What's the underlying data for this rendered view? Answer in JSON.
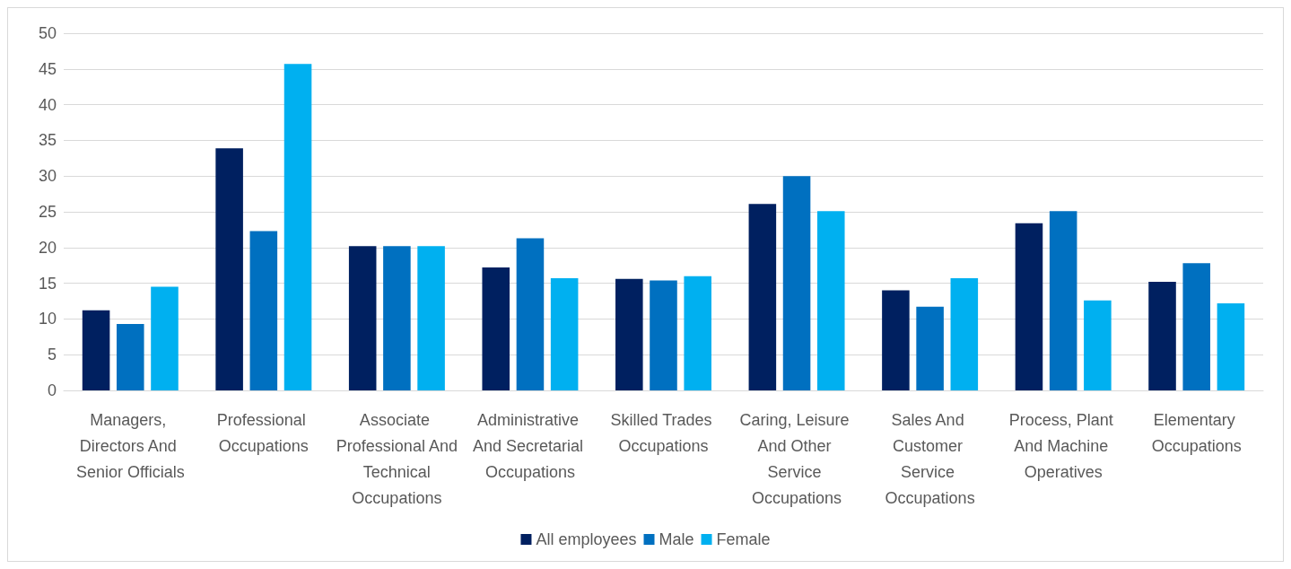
{
  "chart_data": {
    "type": "bar",
    "categories": [
      "Managers, Directors And Senior Officials",
      "Professional Occupations",
      "Associate Professional And Technical Occupations",
      "Administrative And Secretarial Occupations",
      "Skilled Trades Occupations",
      "Caring, Leisure And Other Service Occupations",
      "Sales And Customer Service Occupations",
      "Process, Plant And Machine Operatives",
      "Elementary Occupations"
    ],
    "series": [
      {
        "name": "All employees",
        "color": "#002060",
        "values": [
          11.2,
          33.9,
          20.2,
          17.2,
          15.6,
          26.1,
          14.0,
          23.4,
          15.2
        ]
      },
      {
        "name": "Male",
        "color": "#0070c0",
        "values": [
          9.3,
          22.3,
          20.2,
          21.3,
          15.4,
          30.0,
          11.7,
          25.1,
          17.8
        ]
      },
      {
        "name": "Female",
        "color": "#00b0f0",
        "values": [
          14.5,
          45.7,
          20.2,
          15.7,
          16.0,
          25.1,
          15.7,
          12.6,
          12.2
        ]
      }
    ],
    "ylim": [
      0,
      50
    ],
    "yticks": [
      0,
      5,
      10,
      15,
      20,
      25,
      30,
      35,
      40,
      45,
      50
    ],
    "grid": "y",
    "legend": "bottom"
  }
}
